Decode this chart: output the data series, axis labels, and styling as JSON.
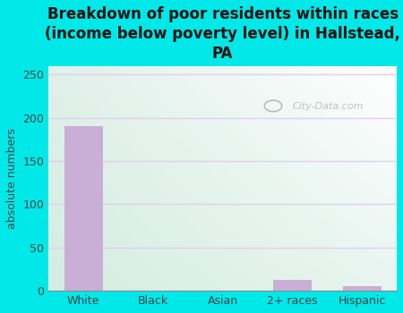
{
  "categories": [
    "White",
    "Black",
    "Asian",
    "2+ races",
    "Hispanic"
  ],
  "values": [
    190,
    0,
    0,
    13,
    5
  ],
  "bar_color": "#c9aed6",
  "title": "Breakdown of poor residents within races\n(income below poverty level) in Hallstead,\nPA",
  "ylabel": "absolute numbers",
  "ylim": [
    0,
    260
  ],
  "yticks": [
    0,
    50,
    100,
    150,
    200,
    250
  ],
  "background_color": "#00e8e8",
  "plot_bg_topleft": "#d4ede0",
  "plot_bg_topright": "#ddeef0",
  "plot_bg_bottomleft": "#d4ede0",
  "plot_bg_bottomright": "#ffffff",
  "grid_color": "#e0d0e8",
  "watermark": "City-Data.com",
  "title_fontsize": 12,
  "ylabel_fontsize": 9,
  "tick_fontsize": 9
}
